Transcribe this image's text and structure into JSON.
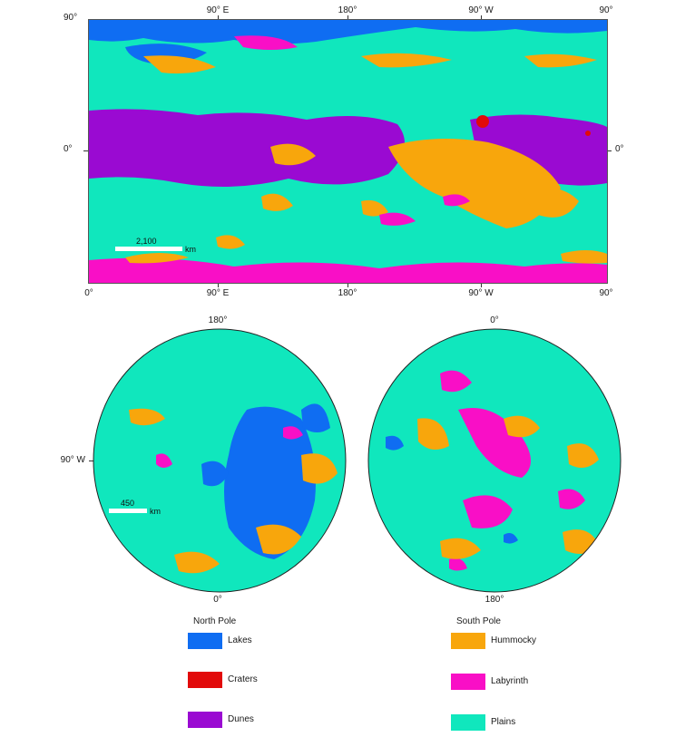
{
  "colors": {
    "lakes": "#0f6df2",
    "craters": "#e20a0a",
    "dunes": "#9a0ad2",
    "hummocky": "#f8a60c",
    "labyrinth": "#f90fc6",
    "plains": "#10e7bd"
  },
  "cyl_map": {
    "top_labels": [
      "90° E",
      "180°",
      "90° W",
      "90°"
    ],
    "bottom_labels": [
      "0°",
      "90° E",
      "180°",
      "90° W",
      "90°"
    ],
    "left_labels": [
      "90°",
      "0°"
    ],
    "right_labels": [
      "0°"
    ],
    "scale": {
      "value": "2,100",
      "unit": "km"
    }
  },
  "north_pole": {
    "top_label": "180°",
    "bottom_label": "0°",
    "left_label": "90° W",
    "scale": {
      "value": "450",
      "unit": "km"
    }
  },
  "south_pole": {
    "top_label": "0°",
    "bottom_label": "180°"
  },
  "legend": {
    "north_title": "North Pole",
    "south_title": "South Pole",
    "left_items": [
      {
        "label": "Lakes",
        "color": "#0f6df2"
      },
      {
        "label": "Craters",
        "color": "#e20a0a"
      },
      {
        "label": "Dunes",
        "color": "#9a0ad2"
      }
    ],
    "right_items": [
      {
        "label": "Hummocky",
        "color": "#f8a60c"
      },
      {
        "label": "Labyrinth",
        "color": "#f90fc6"
      },
      {
        "label": "Plains",
        "color": "#10e7bd"
      }
    ]
  }
}
